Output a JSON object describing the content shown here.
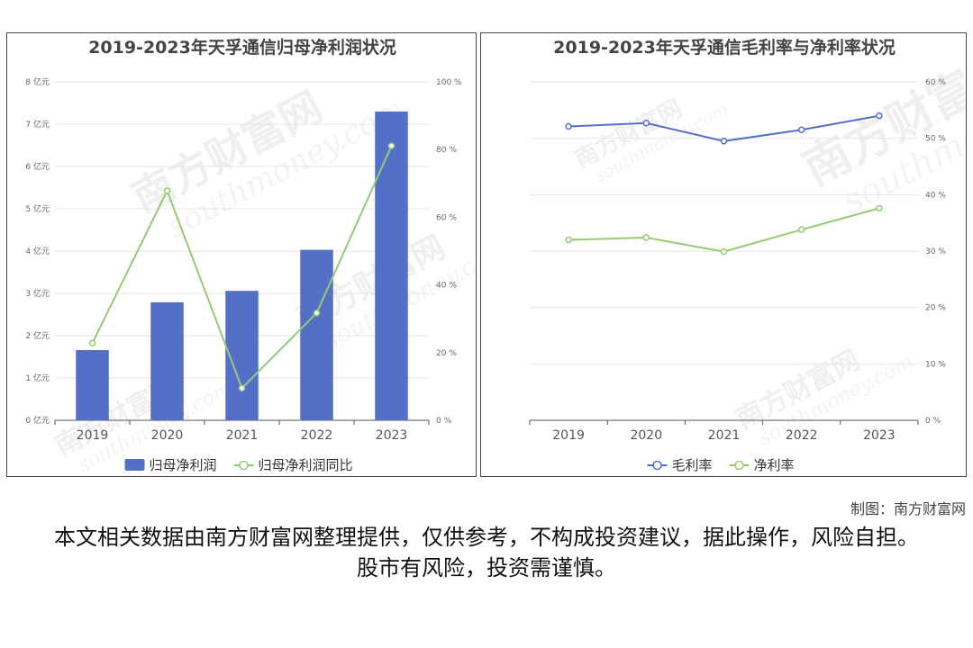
{
  "colors": {
    "bar": "#5470c6",
    "line_green": "#91cc75",
    "line_blue": "#5470c6",
    "grid": "#e6e6e6",
    "axis": "#555555"
  },
  "watermark": {
    "site": "南方财富网",
    "url": "southmoney.com"
  },
  "chart_data": [
    {
      "type": "bar",
      "title": "2019-2023年天孚通信归母净利润状况",
      "categories": [
        "2019",
        "2020",
        "2021",
        "2022",
        "2023"
      ],
      "y_left": {
        "min": 0,
        "max": 8,
        "ticks": [
          "0 亿元",
          "1 亿元",
          "2 亿元",
          "3 亿元",
          "4 亿元",
          "5 亿元",
          "6 亿元",
          "7 亿元",
          "8 亿元"
        ]
      },
      "y_right": {
        "min": 0,
        "max": 100,
        "ticks": [
          "0 %",
          "20 %",
          "40 %",
          "60 %",
          "80 %",
          "100 %"
        ]
      },
      "series": [
        {
          "name": "归母净利润",
          "kind": "bar",
          "axis": "left",
          "values": [
            1.66,
            2.79,
            3.06,
            4.03,
            7.3
          ]
        },
        {
          "name": "归母净利润同比",
          "kind": "line",
          "axis": "right",
          "values": [
            22.8,
            67.8,
            9.5,
            31.7,
            81.1
          ]
        }
      ],
      "legend": "bottom",
      "grid": true
    },
    {
      "type": "line",
      "title": "2019-2023年天孚通信毛利率与净利率状况",
      "categories": [
        "2019",
        "2020",
        "2021",
        "2022",
        "2023"
      ],
      "y_right": {
        "min": 0,
        "max": 60,
        "ticks": [
          "0 %",
          "10 %",
          "20 %",
          "30 %",
          "40 %",
          "50 %",
          "60 %"
        ]
      },
      "series": [
        {
          "name": "毛利率",
          "kind": "line",
          "axis": "right",
          "values": [
            52.1,
            52.7,
            49.5,
            51.5,
            54.0
          ]
        },
        {
          "name": "净利率",
          "kind": "line",
          "axis": "right",
          "values": [
            32.0,
            32.4,
            29.9,
            33.8,
            37.6
          ]
        }
      ],
      "legend": "bottom",
      "grid": true
    }
  ],
  "credit": "制图：南方财富网",
  "disclaimer": "本文相关数据由南方财富网整理提供，仅供参考，不构成投资建议，据此操作，风险自担。股市有风险，投资需谨慎。"
}
